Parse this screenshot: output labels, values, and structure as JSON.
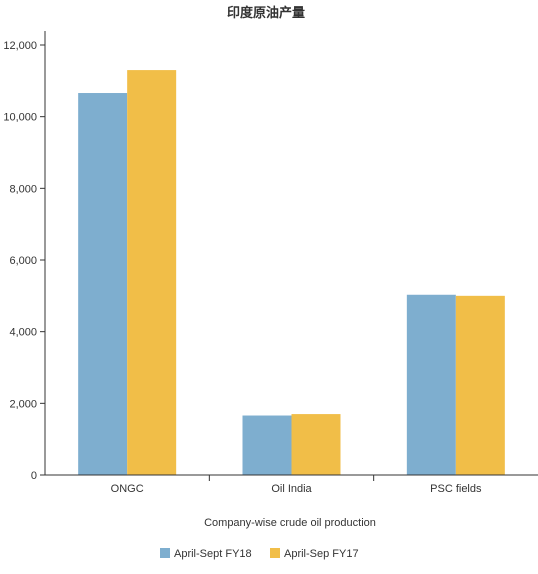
{
  "chart_data": {
    "type": "bar",
    "title": "印度原油产量",
    "xlabel": "Company-wise crude oil production",
    "ylabel": "",
    "categories": [
      "ONGC",
      "Oil India",
      "PSC fields"
    ],
    "series": [
      {
        "name": "April-Sept FY18",
        "color": "#7eaecf",
        "values": [
          10660,
          1660,
          5030
        ]
      },
      {
        "name": "April-Sep FY17",
        "color": "#f1be48",
        "values": [
          11300,
          1700,
          5000
        ]
      }
    ],
    "ylim": [
      0,
      12000
    ],
    "yticks": [
      0,
      2000,
      4000,
      6000,
      8000,
      10000,
      12000
    ],
    "ytick_labels": [
      "0",
      "2,000",
      "4,000",
      "6,000",
      "8,000",
      "10,000",
      "12,000"
    ],
    "grid": false,
    "legend_position": "bottom-left"
  }
}
